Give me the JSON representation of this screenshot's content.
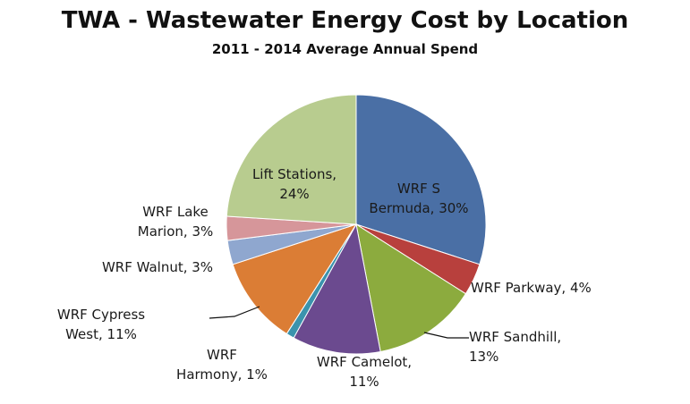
{
  "chart_data": {
    "type": "pie",
    "title": "TWA - Wastewater Energy Cost by Location",
    "subtitle": "2011 - 2014 Average Annual Spend",
    "slices": [
      {
        "name": "WRF S Bermuda",
        "label_lines": [
          "WRF S",
          "Bermuda, 30%"
        ],
        "value": 30,
        "color": "#4a6fa5"
      },
      {
        "name": "WRF Parkway",
        "label_lines": [
          "WRF Parkway, 4%"
        ],
        "value": 4,
        "color": "#b8403d"
      },
      {
        "name": "WRF Sandhill",
        "label_lines": [
          "WRF Sandhill,",
          "13%"
        ],
        "value": 13,
        "color": "#8cab3e"
      },
      {
        "name": "WRF Camelot",
        "label_lines": [
          "WRF Camelot,",
          "11%"
        ],
        "value": 11,
        "color": "#6b4a8f"
      },
      {
        "name": "WRF Harmony",
        "label_lines": [
          "WRF",
          "Harmony, 1%"
        ],
        "value": 1,
        "color": "#3b93ad"
      },
      {
        "name": "WRF Cypress West",
        "label_lines": [
          "WRF Cypress",
          "West, 11%"
        ],
        "value": 11,
        "color": "#db7d35"
      },
      {
        "name": "WRF Walnut",
        "label_lines": [
          "WRF Walnut, 3%"
        ],
        "value": 3,
        "color": "#8fa7cf"
      },
      {
        "name": "WRF Lake Marion",
        "label_lines": [
          "WRF Lake",
          "Marion, 3%"
        ],
        "value": 3,
        "color": "#d6969a"
      },
      {
        "name": "Lift Stations",
        "label_lines": [
          "Lift Stations,",
          "24%"
        ],
        "value": 24,
        "color": "#b8cc8f"
      }
    ]
  }
}
